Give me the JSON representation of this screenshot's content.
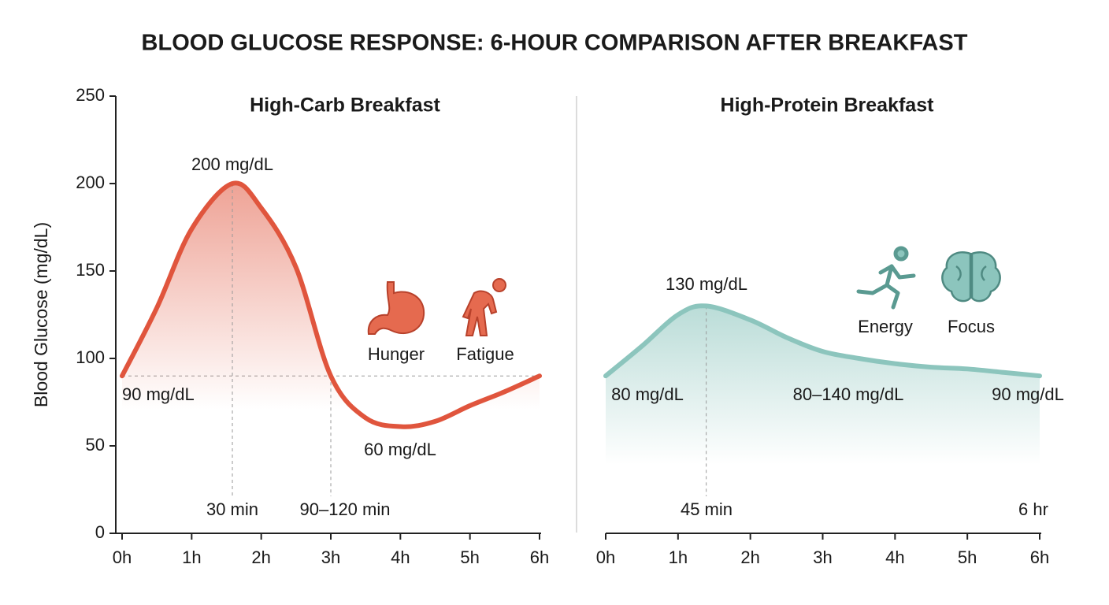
{
  "title": "BLOOD GLUCOSE RESPONSE: 6-HOUR COMPARISON AFTER BREAKFAST",
  "chart_data": [
    {
      "type": "line",
      "title": "High-Carb Breakfast",
      "ylabel": "Blood Glucose (mg/dL)",
      "xlim": [
        0,
        6
      ],
      "ylim": [
        0,
        250
      ],
      "xticks": [
        {
          "value": 0,
          "label": "0h"
        },
        {
          "value": 1,
          "label": "1h"
        },
        {
          "value": 2,
          "label": "2h"
        },
        {
          "value": 3,
          "label": "3h"
        },
        {
          "value": 4,
          "label": "4h"
        },
        {
          "value": 5,
          "label": "5h"
        },
        {
          "value": 6,
          "label": "6h"
        }
      ],
      "yticks": [
        0,
        50,
        100,
        150,
        200,
        250
      ],
      "series": [
        {
          "color": "#e0553d",
          "x": [
            0,
            0.5,
            1,
            1.585,
            2,
            2.5,
            3,
            3.5,
            4.02,
            4.5,
            5,
            5.5,
            6
          ],
          "values": [
            90,
            129,
            174,
            200,
            186,
            152,
            90,
            66,
            61,
            64,
            73,
            81,
            90
          ]
        }
      ],
      "annotations": [
        "200 mg/dL",
        "90 mg/dL",
        "60 mg/dL",
        "30 min",
        "90–120 min",
        "Hunger",
        "Fatigue"
      ]
    },
    {
      "type": "line",
      "title": "High-Protein Breakfast",
      "xlim": [
        0,
        6
      ],
      "ylim": [
        0,
        250
      ],
      "xticks": [
        {
          "value": 0,
          "label": "0h"
        },
        {
          "value": 1,
          "label": "1h"
        },
        {
          "value": 2,
          "label": "2h"
        },
        {
          "value": 3,
          "label": "3h"
        },
        {
          "value": 4,
          "label": "4h"
        },
        {
          "value": 5,
          "label": "5h"
        },
        {
          "value": 6,
          "label": "6h"
        }
      ],
      "series": [
        {
          "color": "#8cc5bd",
          "x": [
            0,
            0.5,
            1,
            1.39,
            2,
            2.5,
            3,
            3.5,
            4,
            4.5,
            5,
            5.5,
            6
          ],
          "values": [
            90,
            107,
            125,
            130,
            122,
            112,
            104,
            100,
            97,
            95,
            94,
            92,
            90
          ]
        }
      ],
      "annotations": [
        "130 mg/dL",
        "80 mg/dL",
        "80–140 mg/dL",
        "90 mg/dL",
        "45 min",
        "6 hr",
        "Energy",
        "Focus"
      ]
    }
  ]
}
